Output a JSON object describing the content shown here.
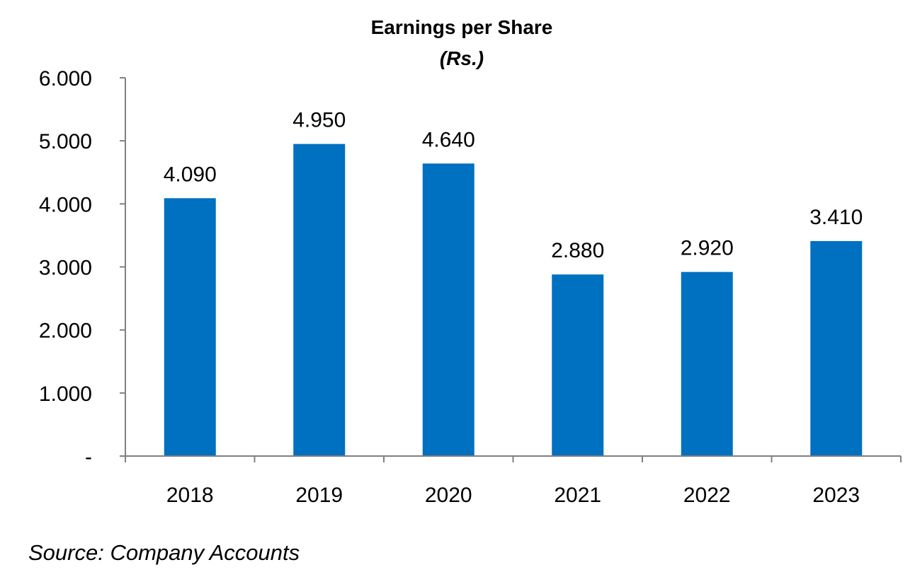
{
  "chart_data": {
    "type": "bar",
    "title": "Earnings per Share",
    "subtitle": "(Rs.)",
    "categories": [
      "2018",
      "2019",
      "2020",
      "2021",
      "2022",
      "2023"
    ],
    "values": [
      4.09,
      4.95,
      4.64,
      2.88,
      2.92,
      3.41
    ],
    "data_labels": [
      "4.090",
      "4.950",
      "4.640",
      "2.880",
      "2.920",
      "3.410"
    ],
    "ylim": [
      0,
      6
    ],
    "y_ticks": [
      0,
      1,
      2,
      3,
      4,
      5,
      6
    ],
    "y_tick_labels": [
      "-",
      "1.000",
      "2.000",
      "3.000",
      "4.000",
      "5.000",
      "6.000"
    ],
    "xlabel": "",
    "ylabel": "",
    "grid": false,
    "legend": "none",
    "bar_color": "#0070C0",
    "source": "Source: Company Accounts"
  }
}
